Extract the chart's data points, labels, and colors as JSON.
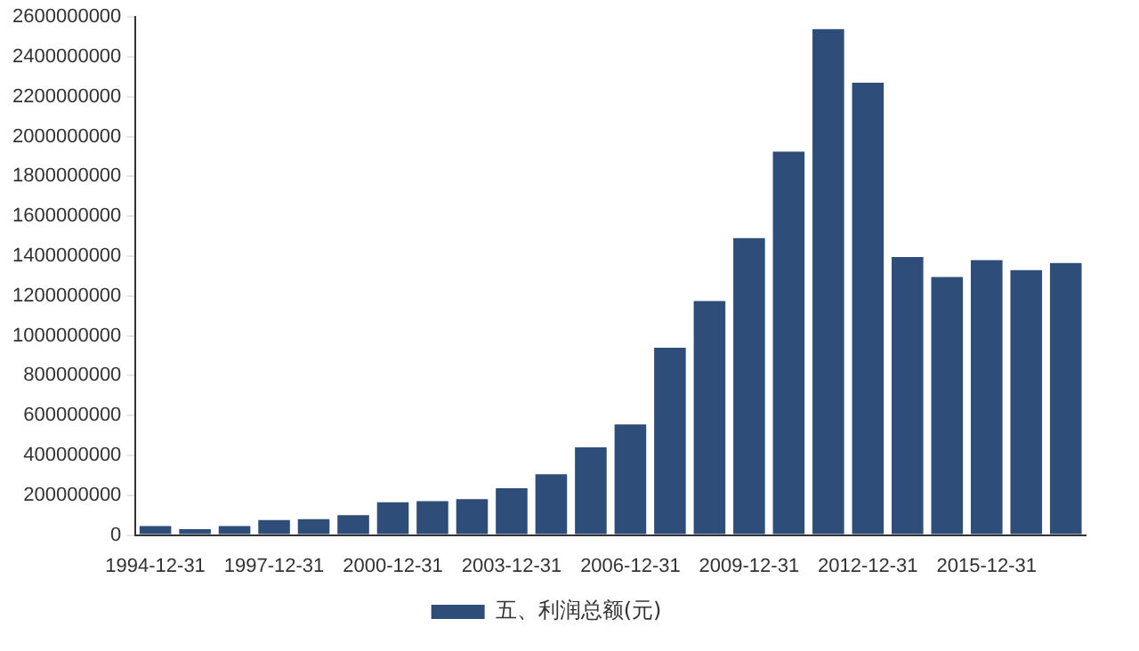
{
  "chart_data": {
    "type": "bar",
    "categories": [
      "1994-12-31",
      null,
      null,
      "1997-12-31",
      null,
      null,
      "2000-12-31",
      null,
      null,
      "2003-12-31",
      null,
      null,
      "2006-12-31",
      null,
      null,
      "2009-12-31",
      null,
      null,
      "2012-12-31",
      null,
      null,
      "2015-12-31",
      null,
      null
    ],
    "series": [
      {
        "name": "五、利润总额(元)",
        "color": "#2e4d78",
        "values": [
          45000000,
          30000000,
          45000000,
          75000000,
          80000000,
          100000000,
          165000000,
          170000000,
          180000000,
          235000000,
          305000000,
          440000000,
          555000000,
          940000000,
          1175000000,
          1490000000,
          1925000000,
          2540000000,
          2270000000,
          1395000000,
          1295000000,
          1380000000,
          1330000000,
          1365000000
        ]
      }
    ],
    "ylim": [
      0,
      2600000000
    ],
    "yticks": [
      0,
      200000000,
      400000000,
      600000000,
      800000000,
      1000000000,
      1200000000,
      1400000000,
      1600000000,
      1800000000,
      2000000000,
      2200000000,
      2400000000,
      2600000000
    ],
    "grid": false,
    "legend": "bottom"
  }
}
